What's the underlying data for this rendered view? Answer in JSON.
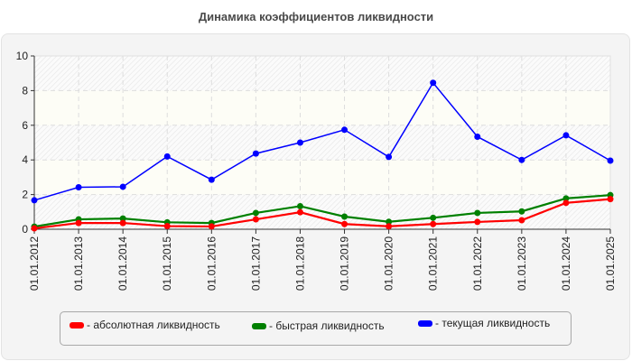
{
  "title": "Динамика коэффициентов ликвидности",
  "colors": {
    "absolute": "#ff0000",
    "quick": "#008000",
    "current": "#0000ff",
    "panel_bg": "#f4f4f4",
    "band_plain": "#fdfdf6",
    "grid": "#dddddd"
  },
  "legend": {
    "items": [
      {
        "label": "- абсолютная ликвидность",
        "color": "#ff0000"
      },
      {
        "label": "- быстрая ликвидность",
        "color": "#008000"
      },
      {
        "label": "- текущая ликвидность",
        "color": "#0000ff"
      }
    ]
  },
  "chart_data": {
    "type": "line",
    "title": "Динамика коэффициентов ликвидности",
    "xlabel": "",
    "ylabel": "",
    "ylim": [
      0,
      10
    ],
    "yticks": [
      0,
      2,
      4,
      6,
      8,
      10
    ],
    "grid": true,
    "legend_position": "bottom",
    "categories": [
      "01.01.2012",
      "01.01.2013",
      "01.01.2014",
      "01.01.2015",
      "01.01.2016",
      "01.01.2017",
      "01.01.2018",
      "01.01.2019",
      "01.01.2020",
      "01.01.2021",
      "01.01.2022",
      "01.01.2023",
      "01.01.2024",
      "01.01.2025"
    ],
    "series": [
      {
        "name": "абсолютная ликвидность",
        "color": "#ff0000",
        "values": [
          0.05,
          0.36,
          0.36,
          0.18,
          0.16,
          0.57,
          0.98,
          0.3,
          0.17,
          0.3,
          0.42,
          0.52,
          1.52,
          1.74
        ]
      },
      {
        "name": "быстрая ликвидность",
        "color": "#008000",
        "values": [
          0.15,
          0.57,
          0.62,
          0.4,
          0.36,
          0.94,
          1.33,
          0.73,
          0.43,
          0.66,
          0.94,
          1.03,
          1.78,
          1.97
        ]
      },
      {
        "name": "текущая ликвидность",
        "color": "#0000ff",
        "values": [
          1.67,
          2.42,
          2.45,
          4.2,
          2.86,
          4.37,
          5.0,
          5.74,
          4.17,
          8.45,
          5.34,
          4.0,
          5.42,
          3.96
        ]
      }
    ]
  }
}
